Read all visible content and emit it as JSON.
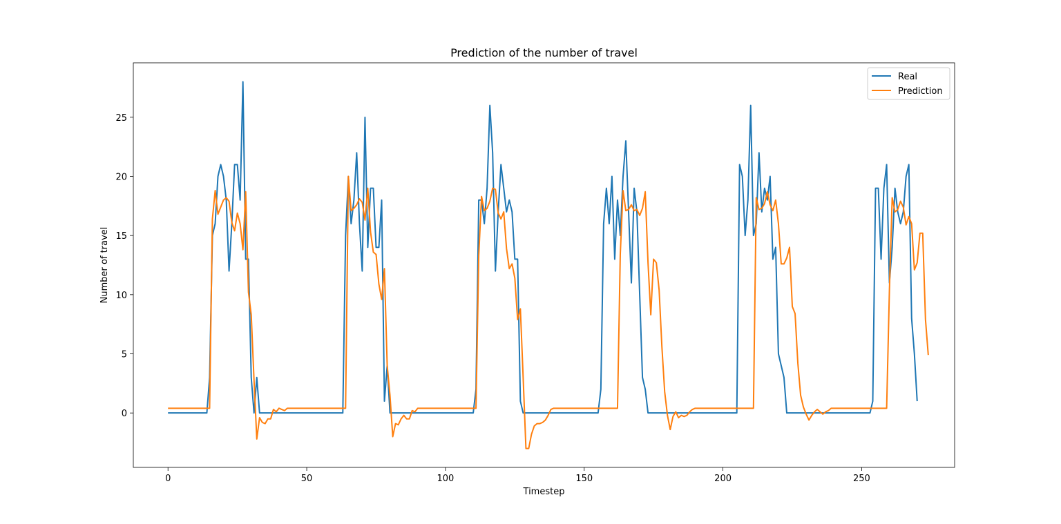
{
  "chart_data": {
    "type": "line",
    "title": "Prediction of the number of travel",
    "xlabel": "Timestep",
    "ylabel": "Number of travel",
    "xlim": [
      -12.5,
      283.5
    ],
    "ylim": [
      -4.6,
      29.6
    ],
    "xticks": [
      0,
      50,
      100,
      150,
      200,
      250
    ],
    "yticks": [
      0,
      5,
      10,
      15,
      20,
      25
    ],
    "grid": false,
    "legend_position": "top-right",
    "series": [
      {
        "name": "Real",
        "color": "#1f77b4",
        "values": [
          0,
          0,
          0,
          0,
          0,
          0,
          0,
          0,
          0,
          0,
          0,
          0,
          0,
          0,
          0,
          3,
          15,
          16,
          20,
          21,
          20,
          18,
          12,
          16,
          21,
          21,
          18,
          28,
          13,
          13,
          3,
          0,
          3,
          0,
          0,
          0,
          0,
          0,
          0,
          0,
          0,
          0,
          0,
          0,
          0,
          0,
          0,
          0,
          0,
          0,
          0,
          0,
          0,
          0,
          0,
          0,
          0,
          0,
          0,
          0,
          0,
          0,
          0,
          0,
          15,
          20,
          16,
          18,
          22,
          16,
          12,
          25,
          14,
          19,
          19,
          14,
          14,
          18,
          1,
          4,
          0,
          0,
          0,
          0,
          0,
          0,
          0,
          0,
          0,
          0,
          0,
          0,
          0,
          0,
          0,
          0,
          0,
          0,
          0,
          0,
          0,
          0,
          0,
          0,
          0,
          0,
          0,
          0,
          0,
          0,
          0,
          2,
          18,
          18,
          16,
          19,
          26,
          22,
          12,
          17,
          21,
          19,
          17,
          18,
          17,
          13,
          13,
          1,
          0,
          0,
          0,
          0,
          0,
          0,
          0,
          0,
          0,
          0,
          0,
          0,
          0,
          0,
          0,
          0,
          0,
          0,
          0,
          0,
          0,
          0,
          0,
          0,
          0,
          0,
          0,
          0,
          2,
          16,
          19,
          16,
          20,
          13,
          18,
          15,
          20,
          23,
          17,
          11,
          19,
          17,
          10,
          3,
          2,
          0,
          0,
          0,
          0,
          0,
          0,
          0,
          0,
          0,
          0,
          0,
          0,
          0,
          0,
          0,
          0,
          0,
          0,
          0,
          0,
          0,
          0,
          0,
          0,
          0,
          0,
          0,
          0,
          0,
          0,
          0,
          0,
          0,
          21,
          20,
          15,
          18,
          26,
          15,
          16,
          22,
          17,
          19,
          18,
          20,
          13,
          14,
          5,
          4,
          3,
          0,
          0,
          0,
          0,
          0,
          0,
          0,
          0,
          0,
          0,
          0,
          0,
          0,
          0,
          0,
          0,
          0,
          0,
          0,
          0,
          0,
          0,
          0,
          0,
          0,
          0,
          0,
          0,
          0,
          0,
          0,
          1,
          19,
          19,
          13,
          19,
          21,
          11,
          14,
          19,
          17,
          16,
          17,
          20,
          21,
          8,
          5,
          1
        ]
      },
      {
        "name": "Prediction",
        "color": "#ff7f0e",
        "values": [
          0.4,
          0.4,
          0.4,
          0.4,
          0.4,
          0.4,
          0.4,
          0.4,
          0.4,
          0.4,
          0.4,
          0.4,
          0.4,
          0.4,
          0.4,
          0.4,
          16.4,
          18.8,
          16.8,
          17.4,
          18.0,
          18.2,
          17.9,
          16.1,
          15.4,
          16.9,
          16.0,
          13.8,
          18.7,
          10.2,
          8.3,
          2.8,
          -2.2,
          -0.4,
          -0.8,
          -0.9,
          -0.5,
          -0.5,
          0.3,
          0.1,
          0.4,
          0.3,
          0.2,
          0.4,
          0.4,
          0.4,
          0.4,
          0.4,
          0.4,
          0.4,
          0.4,
          0.4,
          0.4,
          0.4,
          0.4,
          0.4,
          0.4,
          0.4,
          0.4,
          0.4,
          0.4,
          0.4,
          0.4,
          0.4,
          0.4,
          20.0,
          17.1,
          17.3,
          17.6,
          18.1,
          17.8,
          16.3,
          19.0,
          15.3,
          13.6,
          13.4,
          10.9,
          9.6,
          12.2,
          4.0,
          1.5,
          -2.0,
          -0.9,
          -1.0,
          -0.5,
          -0.2,
          -0.5,
          -0.5,
          0.2,
          0.1,
          0.4,
          0.4,
          0.4,
          0.4,
          0.4,
          0.4,
          0.4,
          0.4,
          0.4,
          0.4,
          0.4,
          0.4,
          0.4,
          0.4,
          0.4,
          0.4,
          0.4,
          0.4,
          0.4,
          0.4,
          0.4,
          0.4,
          13.3,
          18.3,
          17.1,
          17.3,
          17.9,
          19.0,
          18.9,
          16.9,
          16.4,
          17.0,
          13.9,
          12.2,
          12.6,
          11.4,
          7.9,
          8.8,
          3.0,
          -3.0,
          -3.0,
          -1.8,
          -1.1,
          -0.9,
          -0.9,
          -0.8,
          -0.6,
          -0.2,
          0.3,
          0.4,
          0.4,
          0.4,
          0.4,
          0.4,
          0.4,
          0.4,
          0.4,
          0.4,
          0.4,
          0.4,
          0.4,
          0.4,
          0.4,
          0.4,
          0.4,
          0.4,
          0.4,
          0.4,
          0.4,
          0.4,
          0.4,
          0.4,
          0.4,
          13.4,
          18.8,
          17.1,
          17.2,
          17.6,
          17.1,
          17.2,
          16.7,
          17.3,
          18.7,
          12.7,
          8.3,
          13.0,
          12.7,
          10.4,
          5.6,
          1.8,
          -0.2,
          -1.4,
          -0.3,
          0.1,
          -0.4,
          -0.2,
          -0.3,
          -0.2,
          0.1,
          0.3,
          0.4,
          0.4,
          0.4,
          0.4,
          0.4,
          0.4,
          0.4,
          0.4,
          0.4,
          0.4,
          0.4,
          0.4,
          0.4,
          0.4,
          0.4,
          0.4,
          0.4,
          0.4,
          0.4,
          0.4,
          0.4,
          0.4,
          18.2,
          17.2,
          17.3,
          17.7,
          18.7,
          17.6,
          17.1,
          18.0,
          16.0,
          12.6,
          12.6,
          13.1,
          14.0,
          9.0,
          8.4,
          4.2,
          1.5,
          0.5,
          -0.1,
          -0.6,
          -0.2,
          0.1,
          0.3,
          0.1,
          -0.1,
          0.1,
          0.2,
          0.4,
          0.4,
          0.4,
          0.4,
          0.4,
          0.4,
          0.4,
          0.4,
          0.4,
          0.4,
          0.4,
          0.4,
          0.4,
          0.4,
          0.4,
          0.4,
          0.4,
          0.4,
          0.4,
          0.4,
          0.4,
          10.4,
          18.2,
          17.0,
          17.2,
          17.9,
          17.4,
          15.9,
          16.6,
          16.0,
          12.1,
          12.7,
          15.2,
          15.2,
          7.9,
          4.9
        ]
      }
    ]
  }
}
